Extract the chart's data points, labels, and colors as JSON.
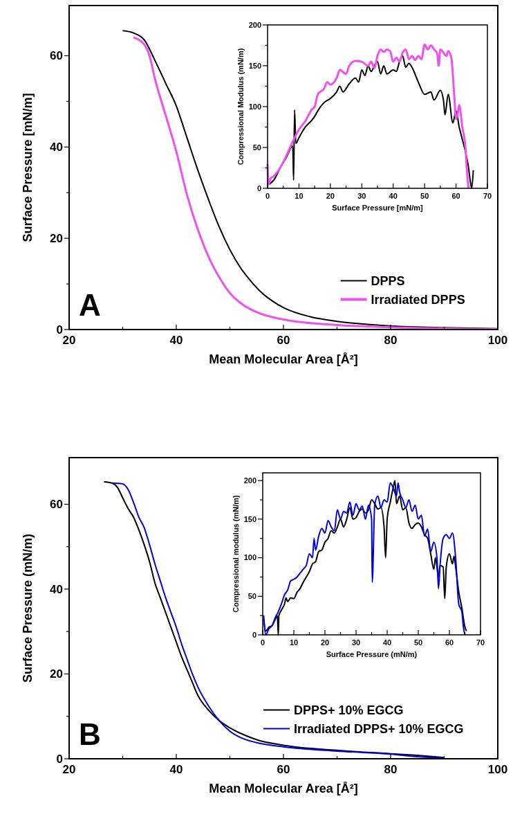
{
  "chart_data": [
    {
      "type": "line",
      "xlabel": "Mean Molecular Area [Å²]",
      "ylabel": "Surface Pressure [mN/m]",
      "xlim": [
        20,
        100
      ],
      "ylim": [
        0,
        71
      ],
      "xticks": [
        20,
        {
          "value": 30,
          "label": null
        },
        40,
        {
          "value": 50,
          "label": null
        },
        60,
        {
          "value": 70,
          "label": null
        },
        80,
        {
          "value": 90,
          "label": null
        },
        100
      ],
      "yticks": [
        0,
        {
          "value": 10,
          "label": null
        },
        20,
        {
          "value": 30,
          "label": null
        },
        40,
        {
          "value": 50,
          "label": null
        },
        60
      ],
      "legend": "bottom right",
      "annotations": [
        "A"
      ],
      "series": [
        {
          "name": "DPPS",
          "color": "#000000",
          "x": [
            30,
            32,
            34,
            36,
            38,
            40,
            42,
            44,
            46,
            48,
            50,
            52,
            54,
            56,
            58,
            60,
            65,
            70,
            80,
            90,
            100
          ],
          "values": [
            65.5,
            65,
            63.5,
            59,
            54,
            49,
            42,
            35,
            28.5,
            22.5,
            17.5,
            13.5,
            10.5,
            8,
            6.2,
            4.8,
            2.8,
            1.8,
            0.8,
            0.4,
            0.2
          ]
        },
        {
          "name": "Irradiated DPPS",
          "color": "#f050f0",
          "x": [
            32,
            34,
            35,
            36,
            38,
            40,
            42,
            44,
            46,
            48,
            50,
            52,
            55,
            60,
            70,
            80,
            100
          ],
          "values": [
            64,
            62.5,
            60,
            55,
            47,
            39,
            29.5,
            22,
            16,
            11.5,
            8,
            5.8,
            3.8,
            2.2,
            1,
            0.5,
            0.1
          ]
        }
      ]
    },
    {
      "type": "line",
      "xlabel": "Surface Pressure [mN/m]",
      "ylabel": "Compressional Modulus (mN/m)",
      "xlim": [
        0,
        70
      ],
      "ylim": [
        0,
        200
      ],
      "xticks": [
        0,
        {
          "value": 5,
          "label": null
        },
        10,
        {
          "value": 15,
          "label": null
        },
        20,
        {
          "value": 25,
          "label": null
        },
        30,
        {
          "value": 35,
          "label": null
        },
        40,
        {
          "value": 45,
          "label": null
        },
        50,
        {
          "value": 55,
          "label": null
        },
        60,
        {
          "value": 65,
          "label": null
        },
        70
      ],
      "yticks": [
        0,
        {
          "value": 25,
          "label": null
        },
        50,
        {
          "value": 75,
          "label": null
        },
        100,
        {
          "value": 125,
          "label": null
        },
        150,
        {
          "value": 175,
          "label": null
        },
        200
      ],
      "series": [
        {
          "color": "#000000",
          "x": [
            0.5,
            2,
            4,
            6,
            8,
            8.3,
            8.6,
            9,
            10,
            12,
            14,
            15,
            16,
            18,
            20,
            22,
            23,
            24,
            26,
            28,
            29,
            30,
            31,
            32,
            33,
            34,
            35,
            36,
            37,
            38,
            40,
            41,
            42,
            43,
            44,
            45,
            46,
            48,
            50,
            52,
            53,
            55,
            56,
            56.5,
            57.5,
            59,
            60,
            61,
            62,
            63,
            64,
            64.5,
            65,
            65.5
          ],
          "values": [
            5,
            10,
            25,
            38,
            52,
            10,
            96,
            55,
            62,
            75,
            83,
            88,
            95,
            105,
            110,
            118,
            125,
            118,
            128,
            135,
            130,
            145,
            138,
            150,
            143,
            150,
            155,
            140,
            150,
            140,
            145,
            143,
            155,
            162,
            148,
            153,
            148,
            130,
            115,
            118,
            108,
            120,
            108,
            90,
            115,
            80,
            95,
            75,
            60,
            45,
            25,
            10,
            0,
            22
          ]
        },
        {
          "color": "#f050f0",
          "x": [
            0,
            0.3,
            1,
            2,
            4,
            6,
            8,
            10,
            12,
            14,
            15,
            16,
            18,
            19,
            20,
            22,
            23,
            25,
            26,
            28,
            30,
            32,
            33,
            34,
            35,
            36,
            37,
            38,
            39,
            40,
            41,
            42,
            43,
            44,
            45,
            46,
            47,
            48,
            49,
            50,
            51,
            52,
            53,
            54,
            54.5,
            55,
            57,
            57.5,
            58.5,
            59.5,
            60,
            60.5,
            61,
            62,
            63,
            63.5,
            64
          ],
          "values": [
            30,
            5,
            12,
            15,
            25,
            40,
            57,
            72,
            82,
            96,
            100,
            115,
            122,
            130,
            127,
            135,
            145,
            140,
            150,
            156,
            155,
            150,
            155,
            147,
            162,
            170,
            167,
            170,
            168,
            155,
            160,
            155,
            166,
            170,
            158,
            162,
            157,
            162,
            158,
            176,
            170,
            175,
            170,
            165,
            150,
            170,
            162,
            168,
            160,
            110,
            85,
            90,
            102,
            75,
            50,
            20,
            0
          ]
        }
      ]
    },
    {
      "type": "line",
      "xlabel": "Mean Molecular Area [Å²]",
      "ylabel": "Surface Pressure (mN/m)",
      "xlim": [
        20,
        100
      ],
      "ylim": [
        0,
        71
      ],
      "xticks": [
        20,
        {
          "value": 30,
          "label": null
        },
        40,
        {
          "value": 50,
          "label": null
        },
        60,
        {
          "value": 70,
          "label": null
        },
        80,
        {
          "value": 90,
          "label": null
        },
        100
      ],
      "yticks": [
        0,
        {
          "value": 10,
          "label": null
        },
        20,
        {
          "value": 30,
          "label": null
        },
        40,
        {
          "value": 50,
          "label": null
        },
        60
      ],
      "legend": "bottom right",
      "annotations": [
        "B"
      ],
      "series": [
        {
          "name": "DPPS+ 10% EGCG",
          "color": "#000000",
          "x": [
            26.5,
            28,
            29,
            30,
            31,
            32,
            33,
            34,
            35,
            36,
            37,
            38,
            39,
            40,
            41,
            42,
            43,
            44,
            46,
            48,
            50,
            52,
            55,
            60,
            70,
            80,
            85,
            90
          ],
          "values": [
            65.3,
            65,
            64,
            61.5,
            59,
            57,
            54,
            50.5,
            46.5,
            41.5,
            38,
            34.5,
            31,
            27.5,
            24,
            21,
            18,
            15,
            11.5,
            9,
            7.3,
            6,
            4.5,
            3.2,
            2,
            1.2,
            0.8,
            0.3
          ]
        },
        {
          "name": "Irradiated DPPS+ 10% EGCG",
          "color": "#0000e0",
          "x": [
            28,
            30,
            31,
            32,
            33,
            34,
            35,
            36,
            37,
            38,
            39,
            40,
            41,
            42,
            43,
            44,
            46,
            48,
            50,
            52,
            55,
            60,
            70,
            80,
            85,
            90
          ],
          "values": [
            65,
            64.8,
            63.5,
            60.5,
            57,
            54.5,
            50.5,
            46,
            42,
            38,
            34.5,
            31,
            27,
            23.5,
            20,
            17,
            12.5,
            9,
            6.5,
            5,
            3.8,
            2.8,
            1.8,
            1.1,
            0.5,
            0.2
          ]
        }
      ]
    },
    {
      "type": "line",
      "xlabel": "Surface Pressure (mN/m)",
      "ylabel": "Compressional modulus (mN/m)",
      "xlim": [
        0,
        70
      ],
      "ylim": [
        0,
        210
      ],
      "xticks": [
        0,
        {
          "value": 5,
          "label": null
        },
        10,
        {
          "value": 15,
          "label": null
        },
        20,
        {
          "value": 25,
          "label": null
        },
        30,
        {
          "value": 35,
          "label": null
        },
        40,
        {
          "value": 45,
          "label": null
        },
        50,
        {
          "value": 55,
          "label": null
        },
        60,
        {
          "value": 65,
          "label": null
        },
        70
      ],
      "yticks": [
        0,
        {
          "value": 25,
          "label": null
        },
        50,
        {
          "value": 75,
          "label": null
        },
        100,
        {
          "value": 125,
          "label": null
        },
        150,
        {
          "value": 175,
          "label": null
        },
        200
      ],
      "series": [
        {
          "color": "#000000",
          "x": [
            0.3,
            1,
            2,
            3,
            4,
            4.7,
            5,
            5.2,
            6,
            7,
            7.5,
            8,
            9,
            10,
            11,
            12,
            13,
            14,
            15,
            16,
            17,
            18,
            19,
            20,
            21,
            22,
            23,
            24,
            25,
            26,
            27,
            28,
            29,
            30,
            31,
            32,
            33,
            34,
            35,
            36,
            37,
            38,
            39,
            39.5,
            40,
            41,
            42,
            42.5,
            43,
            44,
            45,
            46,
            47,
            48,
            49,
            50,
            51,
            52,
            53,
            54,
            55,
            55.5,
            56.5,
            57,
            58,
            58.5,
            59,
            60,
            61,
            61.5,
            62,
            63,
            64,
            65,
            65.5
          ],
          "values": [
            20,
            5,
            10,
            12,
            20,
            25,
            0,
            25,
            32,
            40,
            48,
            43,
            48,
            47,
            55,
            60,
            68,
            75,
            82,
            92,
            95,
            108,
            110,
            120,
            125,
            135,
            132,
            140,
            150,
            140,
            150,
            165,
            150,
            152,
            160,
            163,
            158,
            162,
            175,
            170,
            163,
            165,
            140,
            100,
            150,
            172,
            192,
            200,
            170,
            180,
            162,
            165,
            145,
            138,
            143,
            145,
            140,
            130,
            125,
            105,
            85,
            100,
            75,
            90,
            88,
            47,
            88,
            105,
            92,
            102,
            88,
            56,
            35,
            10,
            5
          ]
        },
        {
          "color": "#0000e0",
          "x": [
            0.3,
            1,
            2,
            3,
            4,
            5,
            6,
            7,
            8,
            9,
            10,
            11,
            12,
            13,
            14,
            15,
            16,
            16.5,
            17,
            18,
            19,
            20,
            21,
            22,
            23,
            24,
            25,
            26,
            27,
            28,
            29,
            30,
            31,
            32,
            33,
            34,
            35,
            35.2,
            36,
            37,
            38,
            39,
            40,
            41,
            42,
            43,
            43.5,
            44,
            45,
            46,
            47,
            48,
            49,
            50,
            51,
            52,
            53,
            54,
            55,
            56,
            56.5,
            57,
            58,
            59,
            60,
            61,
            62,
            63,
            64,
            64.5,
            65
          ],
          "values": [
            25,
            0,
            8,
            12,
            22,
            30,
            40,
            52,
            58,
            70,
            72,
            75,
            80,
            85,
            90,
            105,
            100,
            125,
            110,
            128,
            138,
            132,
            148,
            140,
            135,
            162,
            150,
            160,
            158,
            172,
            155,
            170,
            162,
            167,
            150,
            168,
            150,
            68,
            168,
            180,
            165,
            175,
            172,
            197,
            190,
            180,
            197,
            185,
            175,
            165,
            175,
            160,
            168,
            150,
            155,
            128,
            137,
            108,
            120,
            100,
            60,
            90,
            125,
            130,
            125,
            132,
            100,
            40,
            30,
            10,
            0
          ]
        }
      ]
    }
  ]
}
